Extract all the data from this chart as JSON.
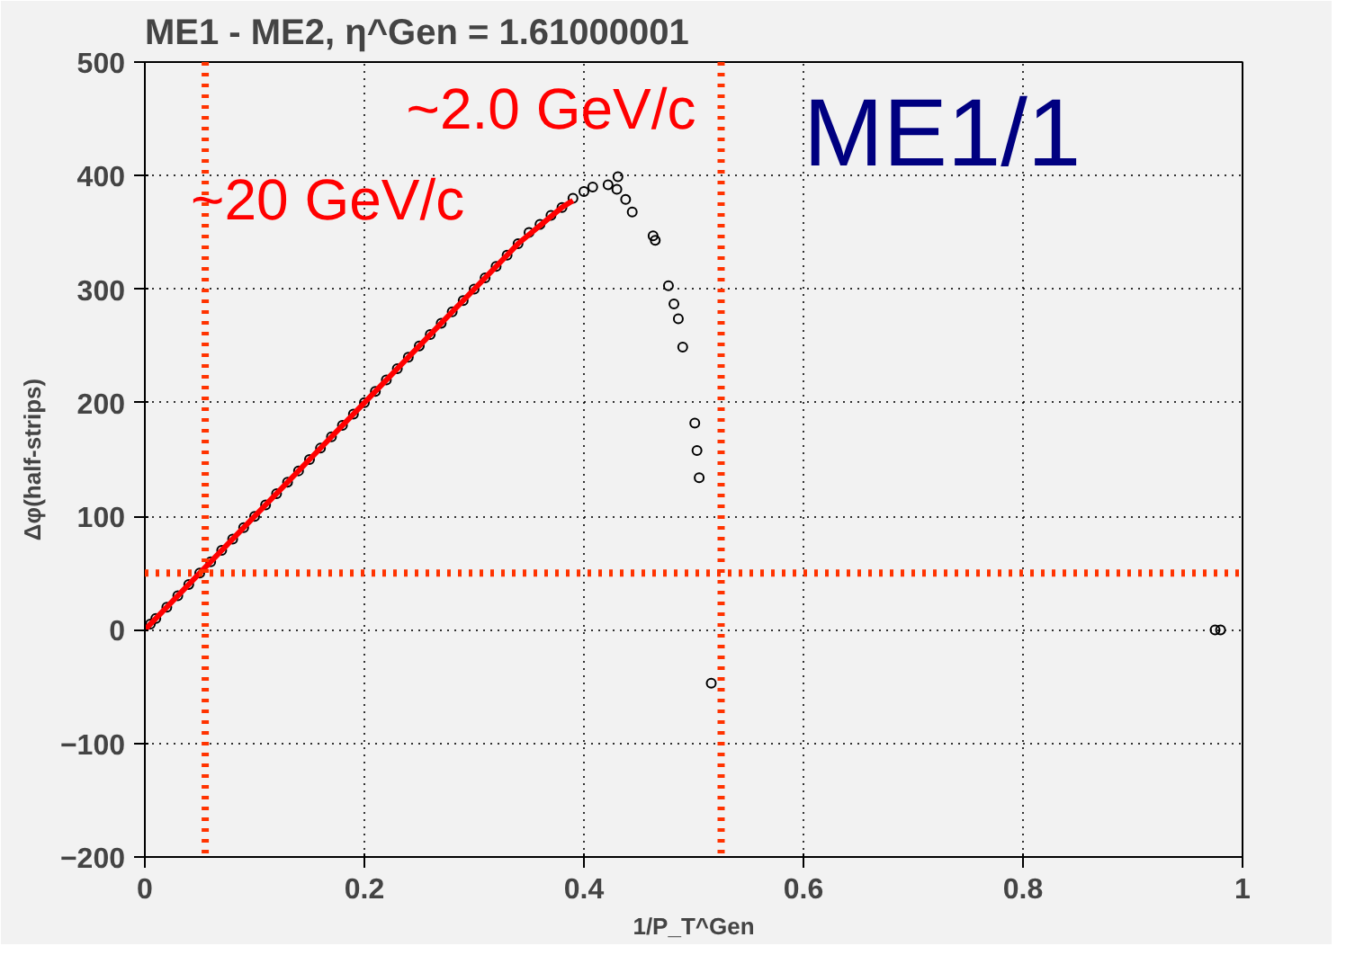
{
  "chart_data": {
    "type": "scatter",
    "title": "ME1 - ME2, η^Gen = 1.61000001",
    "xlabel": "1/P_T^Gen",
    "ylabel": "Δφ(half-strips)",
    "xlim": [
      0,
      1
    ],
    "ylim": [
      -200,
      500
    ],
    "xticks": [
      0,
      0.2,
      0.4,
      0.6,
      0.8,
      1
    ],
    "yticks": [
      -200,
      -100,
      0,
      100,
      200,
      300,
      400,
      500
    ],
    "grid": true,
    "series": [
      {
        "marker": "circle",
        "color": "#000000",
        "x": [
          0.005,
          0.01,
          0.02,
          0.03,
          0.04,
          0.05,
          0.06,
          0.07,
          0.08,
          0.09,
          0.1,
          0.11,
          0.12,
          0.13,
          0.14,
          0.15,
          0.16,
          0.17,
          0.18,
          0.19,
          0.2,
          0.21,
          0.22,
          0.23,
          0.24,
          0.25,
          0.26,
          0.27,
          0.28,
          0.29,
          0.3,
          0.31,
          0.32,
          0.33,
          0.34,
          0.35,
          0.36,
          0.37,
          0.38,
          0.39,
          0.4,
          0.408,
          0.422,
          0.43,
          0.431,
          0.438,
          0.444,
          0.463,
          0.465,
          0.477,
          0.482,
          0.486,
          0.49,
          0.501,
          0.503,
          0.505,
          0.516,
          0.975,
          0.98
        ],
        "values": [
          5,
          10,
          20,
          30,
          40,
          50,
          60,
          70,
          80,
          90,
          100,
          110,
          120,
          130,
          140,
          150,
          160,
          170,
          180,
          190,
          200,
          210,
          220,
          230,
          240,
          250,
          260,
          270,
          280,
          290,
          300,
          310,
          320,
          330,
          340,
          350,
          357,
          365,
          372,
          380,
          386,
          390,
          392,
          388,
          399,
          379,
          368,
          347,
          343,
          303,
          287,
          274,
          249,
          182,
          158,
          134,
          -47,
          0,
          0
        ]
      },
      {
        "type": "line",
        "color": "#ff0000",
        "x": [
          0,
          0.1,
          0.2,
          0.3,
          0.34,
          0.36,
          0.38,
          0.39
        ],
        "values": [
          0,
          100,
          200,
          300,
          340,
          356,
          372,
          378
        ]
      }
    ],
    "ref_lines": [
      {
        "axis": "y",
        "value": 50,
        "color": "#ff3300",
        "line_style": "dotted"
      },
      {
        "axis": "x",
        "value": 0.055,
        "color": "#ff3300",
        "line_style": "dotted"
      },
      {
        "axis": "x",
        "value": 0.525,
        "color": "#ff3300",
        "line_style": "dotted"
      }
    ],
    "annotations": [
      {
        "text": "~20 GeV/c",
        "x": 0.055,
        "y": 350
      },
      {
        "text": "~2.0 GeV/c",
        "x": 0.525,
        "y": 430
      },
      "ME1/1"
    ]
  }
}
